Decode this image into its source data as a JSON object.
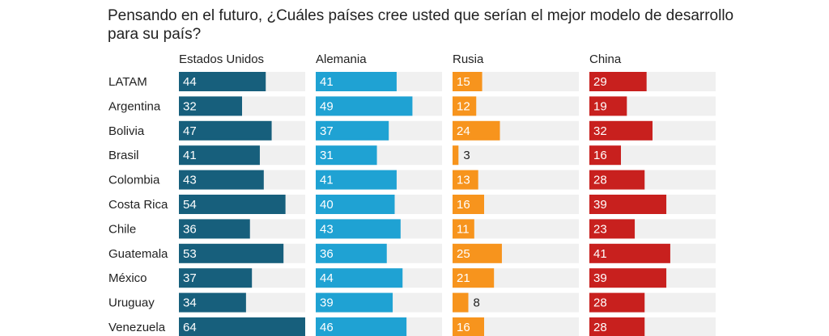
{
  "chart_data": {
    "type": "bar",
    "title": "Pensando en el futuro, ¿Cuáles países cree usted que serían el mejor modelo de desarrollo para su país?",
    "categories": [
      "LATAM",
      "Argentina",
      "Bolivia",
      "Brasil",
      "Colombia",
      "Costa Rica",
      "Chile",
      "Guatemala",
      "México",
      "Uruguay",
      "Venezuela"
    ],
    "series": [
      {
        "name": "Estados Unidos",
        "color": "#175f7c",
        "values": [
          44,
          32,
          47,
          41,
          43,
          54,
          36,
          53,
          37,
          34,
          64
        ]
      },
      {
        "name": "Alemania",
        "color": "#1fa2d3",
        "values": [
          41,
          49,
          37,
          31,
          41,
          40,
          43,
          36,
          44,
          39,
          46
        ]
      },
      {
        "name": "Rusia",
        "color": "#f7941d",
        "values": [
          15,
          12,
          24,
          3,
          13,
          16,
          11,
          25,
          21,
          8,
          16
        ]
      },
      {
        "name": "China",
        "color": "#c8201e",
        "values": [
          29,
          19,
          32,
          16,
          28,
          39,
          23,
          41,
          39,
          28,
          28
        ]
      }
    ],
    "xlim": [
      0,
      64
    ],
    "background_bar_color": "#f0f0f0",
    "grid": false
  }
}
